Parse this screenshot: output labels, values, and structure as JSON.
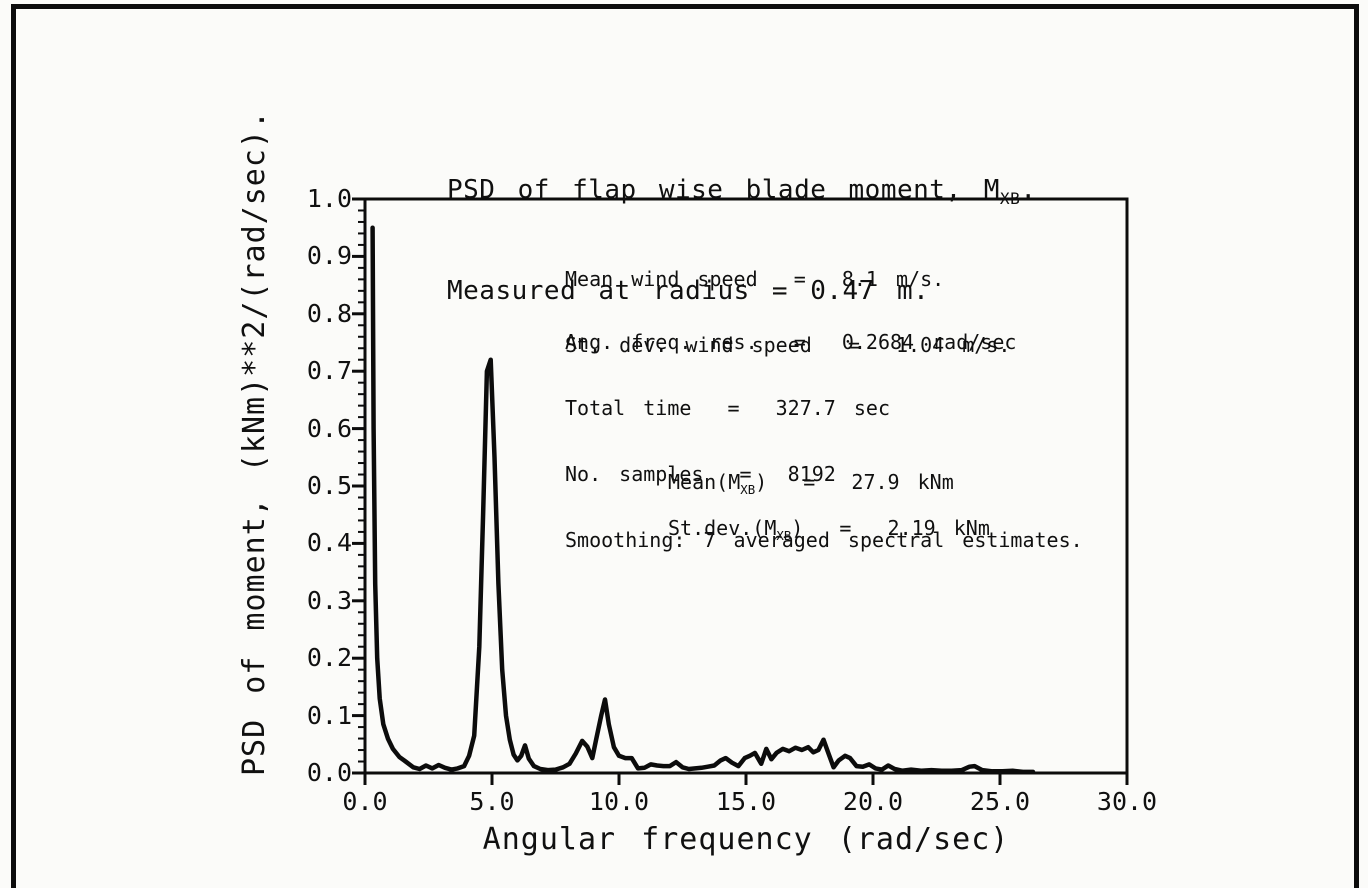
{
  "colors": {
    "ink": "#101010",
    "paper": "#fbfbf9"
  },
  "chart_data": {
    "type": "line",
    "title": "PSD of flap wise blade moment, MXB. Measured at radius = 0.47 m.",
    "title_block": {
      "line1": {
        "pre": "PSD of flap wise blade moment, M",
        "sub": "XB",
        "post": "."
      },
      "line2": "Measured at radius = 0.47 m."
    },
    "xlabel": "Angular frequency (rad/sec)",
    "ylabel": "PSD of moment, (kNm)**2/(rad/sec).",
    "xlim": [
      0,
      30
    ],
    "ylim": [
      0,
      1.0
    ],
    "grid": false,
    "legend": null,
    "x_ticks": {
      "values": [
        0,
        5,
        10,
        15,
        20,
        25,
        30
      ],
      "labels": [
        "0.0",
        "5.0",
        "10.0",
        "15.0",
        "20.0",
        "25.0",
        "30.0"
      ]
    },
    "y_ticks": {
      "values": [
        0,
        0.1,
        0.2,
        0.3,
        0.4,
        0.5,
        0.6,
        0.7,
        0.8,
        0.9,
        1.0
      ],
      "labels": [
        "0.0",
        "0.1",
        "0.2",
        "0.3",
        "0.4",
        "0.5",
        "0.6",
        "0.7",
        "0.8",
        "0.9",
        "1.0"
      ],
      "minor_step": 0.02
    },
    "series": [
      {
        "name": "PSD of flap wise blade moment",
        "color": "#0c0c0c",
        "x": [
          0.3,
          0.34,
          0.4,
          0.48,
          0.58,
          0.72,
          0.9,
          1.1,
          1.35,
          1.6,
          1.9,
          2.15,
          2.4,
          2.65,
          2.9,
          3.15,
          3.4,
          3.65,
          3.9,
          4.1,
          4.3,
          4.5,
          4.65,
          4.8,
          4.95,
          5.1,
          5.25,
          5.4,
          5.55,
          5.7,
          5.85,
          6.0,
          6.15,
          6.3,
          6.45,
          6.65,
          6.9,
          7.2,
          7.5,
          7.8,
          8.05,
          8.3,
          8.55,
          8.75,
          8.95,
          9.1,
          9.3,
          9.45,
          9.6,
          9.8,
          10.0,
          10.25,
          10.5,
          10.75,
          11.0,
          11.25,
          11.5,
          11.75,
          12.0,
          12.25,
          12.5,
          12.75,
          13.0,
          13.25,
          13.5,
          13.75,
          14.0,
          14.2,
          14.45,
          14.7,
          14.95,
          15.15,
          15.35,
          15.6,
          15.8,
          16.0,
          16.2,
          16.45,
          16.7,
          16.95,
          17.2,
          17.45,
          17.65,
          17.85,
          18.05,
          18.25,
          18.45,
          18.65,
          18.9,
          19.1,
          19.35,
          19.6,
          19.85,
          20.1,
          20.35,
          20.6,
          20.85,
          21.15,
          21.5,
          21.9,
          22.3,
          22.7,
          23.1,
          23.5,
          23.8,
          24.0,
          24.3,
          24.7,
          25.1,
          25.5,
          25.9,
          26.3
        ],
        "y": [
          0.95,
          0.6,
          0.33,
          0.2,
          0.13,
          0.085,
          0.06,
          0.042,
          0.028,
          0.02,
          0.01,
          0.007,
          0.013,
          0.008,
          0.014,
          0.009,
          0.006,
          0.008,
          0.012,
          0.03,
          0.065,
          0.22,
          0.45,
          0.7,
          0.72,
          0.55,
          0.33,
          0.18,
          0.1,
          0.058,
          0.032,
          0.022,
          0.03,
          0.048,
          0.025,
          0.012,
          0.007,
          0.005,
          0.006,
          0.01,
          0.016,
          0.034,
          0.056,
          0.046,
          0.026,
          0.058,
          0.1,
          0.128,
          0.085,
          0.045,
          0.03,
          0.026,
          0.026,
          0.008,
          0.009,
          0.015,
          0.013,
          0.012,
          0.012,
          0.019,
          0.01,
          0.007,
          0.008,
          0.009,
          0.011,
          0.013,
          0.022,
          0.026,
          0.018,
          0.012,
          0.026,
          0.03,
          0.035,
          0.016,
          0.042,
          0.024,
          0.035,
          0.042,
          0.038,
          0.044,
          0.04,
          0.045,
          0.036,
          0.04,
          0.058,
          0.034,
          0.01,
          0.022,
          0.03,
          0.026,
          0.012,
          0.011,
          0.015,
          0.008,
          0.006,
          0.013,
          0.007,
          0.004,
          0.006,
          0.004,
          0.005,
          0.004,
          0.004,
          0.005,
          0.011,
          0.012,
          0.005,
          0.003,
          0.003,
          0.004,
          0.002,
          0.002
        ]
      }
    ],
    "annotations": {
      "wind_block": [
        "Mean wind speed  =  8.1 m/s.",
        "St. dev. wind speed  =  1.04 m/s."
      ],
      "processing_block": [
        "Ang. freq. res.  =  0.2684 rad/sec",
        "Total time  =  327.7 sec",
        "No. samples  =  8192",
        "Smoothing: 7 averaged spectral estimates."
      ],
      "stats": [
        {
          "pre": "Mean(M",
          "sub": "XB",
          "post": ")  =  27.9 kNm"
        },
        {
          "pre": "St.dev.(M",
          "sub": "XB",
          "post": ")  =  2.19 kNm"
        }
      ]
    }
  }
}
